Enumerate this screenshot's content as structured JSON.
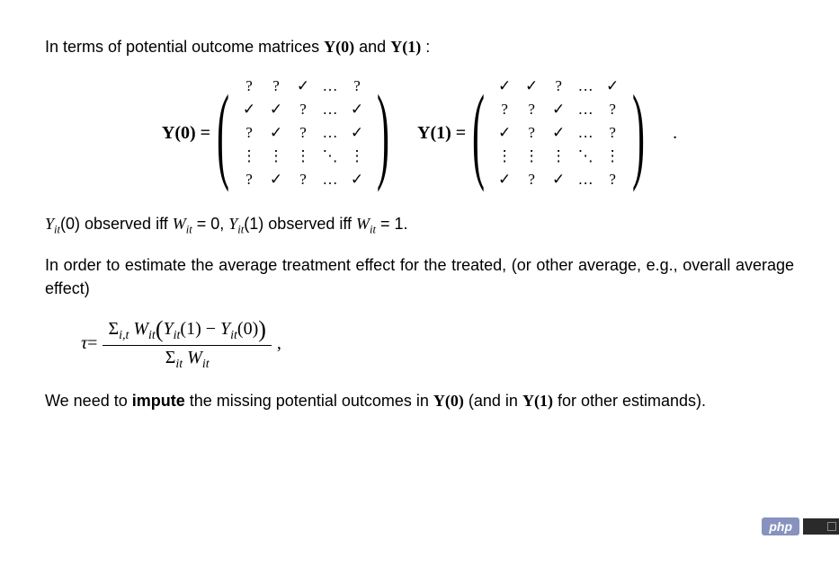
{
  "intro_text_pre": "In terms of potential outcome matrices ",
  "Y0_label": "Y(0)",
  "and_text": " and ",
  "Y1_label": "Y(1)",
  "colon": ":",
  "matrices": {
    "Y0": {
      "label_html": "Y(0) =",
      "cells": [
        [
          "?",
          "?",
          "✓",
          "…",
          "?"
        ],
        [
          "✓",
          "✓",
          "?",
          "…",
          "✓"
        ],
        [
          "?",
          "✓",
          "?",
          "…",
          "✓"
        ],
        [
          "⋮",
          "⋮",
          "⋮",
          "⋱",
          "⋮"
        ],
        [
          "?",
          "✓",
          "?",
          "…",
          "✓"
        ]
      ]
    },
    "Y1": {
      "label_html": "Y(1) =",
      "cells": [
        [
          "✓",
          "✓",
          "?",
          "…",
          "✓"
        ],
        [
          "?",
          "?",
          "✓",
          "…",
          "?"
        ],
        [
          "✓",
          "?",
          "✓",
          "…",
          "?"
        ],
        [
          "⋮",
          "⋮",
          "⋮",
          "⋱",
          "⋮"
        ],
        [
          "✓",
          "?",
          "✓",
          "…",
          "?"
        ]
      ]
    },
    "trailing_period": "."
  },
  "obs_line": {
    "p1": "Y",
    "sub1": "it",
    "p2": "(0) observed iff ",
    "W": "W",
    "subW": "it",
    "eq": " = 0, ",
    "p3": "Y",
    "sub2": "it",
    "p4": "(1) observed iff ",
    "W2": "W",
    "subW2": "it",
    "eq2": " = 1."
  },
  "para2": "In order to estimate the average treatment effect for the treated, (or other average, e.g., overall average effect)",
  "formula": {
    "tau": "τ",
    "eq": " = ",
    "num_sigma": "Σ",
    "num_sub": "i,t",
    "num_W": " W",
    "num_Wsub": "it",
    "num_open": "(",
    "num_Y1": "Y",
    "num_Y1sub": "it",
    "num_Y1arg": "(1) − ",
    "num_Y0": "Y",
    "num_Y0sub": "it",
    "num_Y0arg": "(0)",
    "num_close": ")",
    "den_sigma": "Σ",
    "den_sub": "it",
    "den_W": " W",
    "den_Wsub": "it",
    "comma": ","
  },
  "para3_a": "We need to ",
  "para3_b": "impute",
  "para3_c": " the missing potential outcomes in ",
  "para3_Y0": "Y(0)",
  "para3_d": " (and in ",
  "para3_Y1": "Y(1)",
  "para3_e": " for other estimands).",
  "badge": "php"
}
